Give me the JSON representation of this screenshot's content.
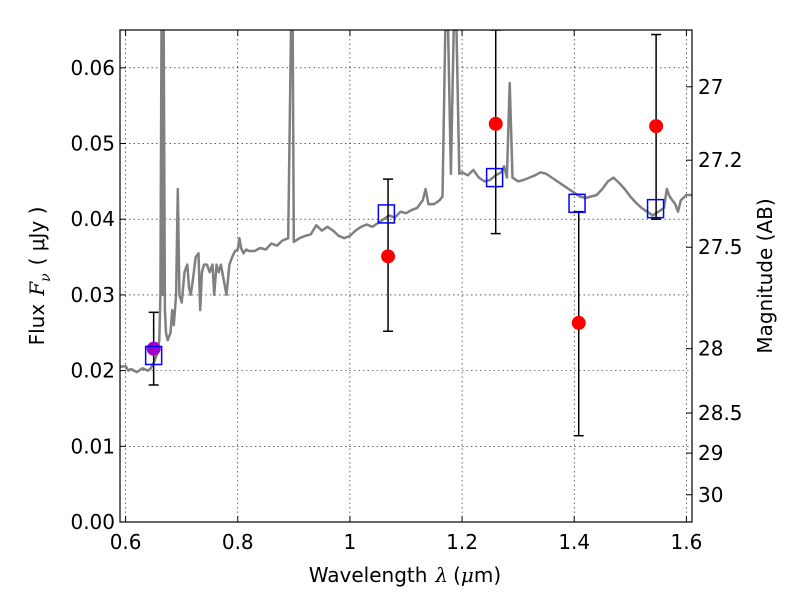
{
  "chart_data": {
    "type": "line",
    "xlabel": "Wavelength",
    "xlabel_symbol": "λ",
    "xlabel_unit_prefix": "(",
    "xlabel_unit": "μ",
    "xlabel_unit_suffix": "m)",
    "ylabel_left": "Flux",
    "ylabel_left_symbol": "F",
    "ylabel_left_subscript": "ν",
    "ylabel_left_unit": "( μJy )",
    "ylabel_right": "Magnitude (AB)",
    "xlim": [
      0.59,
      1.61
    ],
    "ylim": [
      0.0,
      0.065
    ],
    "grid": true,
    "x_ticks": [
      {
        "value": 0.6,
        "label": "0.6"
      },
      {
        "value": 0.8,
        "label": "0.8"
      },
      {
        "value": 1.0,
        "label": "1"
      },
      {
        "value": 1.2,
        "label": "1.2"
      },
      {
        "value": 1.4,
        "label": "1.4"
      },
      {
        "value": 1.6,
        "label": "1.6"
      }
    ],
    "y_ticks": [
      {
        "value": 0.0,
        "label": "0.00"
      },
      {
        "value": 0.01,
        "label": "0.01"
      },
      {
        "value": 0.02,
        "label": "0.02"
      },
      {
        "value": 0.03,
        "label": "0.03"
      },
      {
        "value": 0.04,
        "label": "0.04"
      },
      {
        "value": 0.05,
        "label": "0.05"
      },
      {
        "value": 0.06,
        "label": "0.06"
      }
    ],
    "right_ticks": [
      {
        "flux": 0.0575,
        "label": "27"
      },
      {
        "flux": 0.0478,
        "label": "27.2"
      },
      {
        "flux": 0.0363,
        "label": "27.5"
      },
      {
        "flux": 0.0229,
        "label": "28"
      },
      {
        "flux": 0.0144,
        "label": "28.5"
      },
      {
        "flux": 0.0091,
        "label": "29"
      },
      {
        "flux": 0.0036,
        "label": "30"
      }
    ],
    "series": [
      {
        "kind": "spectrum",
        "color": "#808080",
        "points": [
          [
            0.59,
            0.0205
          ],
          [
            0.6,
            0.0206
          ],
          [
            0.605,
            0.02
          ],
          [
            0.61,
            0.0202
          ],
          [
            0.62,
            0.0198
          ],
          [
            0.63,
            0.0203
          ],
          [
            0.64,
            0.02
          ],
          [
            0.645,
            0.0203
          ],
          [
            0.65,
            0.021
          ],
          [
            0.655,
            0.022
          ],
          [
            0.66,
            0.024
          ],
          [
            0.662,
            0.03
          ],
          [
            0.664,
            0.065
          ],
          [
            0.666,
            0.03
          ],
          [
            0.668,
            0.065
          ],
          [
            0.67,
            0.028
          ],
          [
            0.672,
            0.025
          ],
          [
            0.675,
            0.024
          ],
          [
            0.68,
            0.025
          ],
          [
            0.683,
            0.028
          ],
          [
            0.686,
            0.026
          ],
          [
            0.69,
            0.03
          ],
          [
            0.693,
            0.044
          ],
          [
            0.696,
            0.03
          ],
          [
            0.7,
            0.029
          ],
          [
            0.705,
            0.033
          ],
          [
            0.71,
            0.034
          ],
          [
            0.713,
            0.031
          ],
          [
            0.716,
            0.03
          ],
          [
            0.72,
            0.032
          ],
          [
            0.725,
            0.035
          ],
          [
            0.73,
            0.0355
          ],
          [
            0.733,
            0.028
          ],
          [
            0.736,
            0.033
          ],
          [
            0.74,
            0.034
          ],
          [
            0.745,
            0.034
          ],
          [
            0.75,
            0.033
          ],
          [
            0.755,
            0.034
          ],
          [
            0.758,
            0.03
          ],
          [
            0.762,
            0.034
          ],
          [
            0.766,
            0.033
          ],
          [
            0.77,
            0.034
          ],
          [
            0.775,
            0.032
          ],
          [
            0.78,
            0.03
          ],
          [
            0.785,
            0.034
          ],
          [
            0.79,
            0.035
          ],
          [
            0.795,
            0.0358
          ],
          [
            0.8,
            0.036
          ],
          [
            0.803,
            0.0375
          ],
          [
            0.806,
            0.0362
          ],
          [
            0.81,
            0.0355
          ],
          [
            0.815,
            0.036
          ],
          [
            0.82,
            0.0358
          ],
          [
            0.83,
            0.0358
          ],
          [
            0.84,
            0.0362
          ],
          [
            0.85,
            0.036
          ],
          [
            0.86,
            0.0368
          ],
          [
            0.87,
            0.0365
          ],
          [
            0.88,
            0.0372
          ],
          [
            0.89,
            0.0375
          ],
          [
            0.895,
            0.065
          ],
          [
            0.898,
            0.065
          ],
          [
            0.9,
            0.037
          ],
          [
            0.91,
            0.0375
          ],
          [
            0.92,
            0.0378
          ],
          [
            0.93,
            0.038
          ],
          [
            0.94,
            0.0392
          ],
          [
            0.95,
            0.0385
          ],
          [
            0.96,
            0.039
          ],
          [
            0.97,
            0.0385
          ],
          [
            0.98,
            0.0378
          ],
          [
            0.99,
            0.0375
          ],
          [
            1.0,
            0.0378
          ],
          [
            1.01,
            0.0385
          ],
          [
            1.02,
            0.039
          ],
          [
            1.03,
            0.0393
          ],
          [
            1.04,
            0.039
          ],
          [
            1.05,
            0.0395
          ],
          [
            1.06,
            0.04
          ],
          [
            1.07,
            0.0405
          ],
          [
            1.08,
            0.0402
          ],
          [
            1.09,
            0.041
          ],
          [
            1.1,
            0.0408
          ],
          [
            1.11,
            0.0412
          ],
          [
            1.12,
            0.0415
          ],
          [
            1.13,
            0.0425
          ],
          [
            1.135,
            0.044
          ],
          [
            1.14,
            0.042
          ],
          [
            1.15,
            0.042
          ],
          [
            1.16,
            0.0425
          ],
          [
            1.165,
            0.043
          ],
          [
            1.17,
            0.065
          ],
          [
            1.175,
            0.065
          ],
          [
            1.18,
            0.046
          ],
          [
            1.185,
            0.065
          ],
          [
            1.19,
            0.065
          ],
          [
            1.195,
            0.046
          ],
          [
            1.2,
            0.0462
          ],
          [
            1.21,
            0.0458
          ],
          [
            1.22,
            0.0465
          ],
          [
            1.23,
            0.0455
          ],
          [
            1.24,
            0.045
          ],
          [
            1.25,
            0.0452
          ],
          [
            1.26,
            0.0458
          ],
          [
            1.27,
            0.0462
          ],
          [
            1.275,
            0.047
          ],
          [
            1.28,
            0.0455
          ],
          [
            1.285,
            0.058
          ],
          [
            1.29,
            0.0455
          ],
          [
            1.3,
            0.045
          ],
          [
            1.31,
            0.0452
          ],
          [
            1.32,
            0.0455
          ],
          [
            1.33,
            0.0458
          ],
          [
            1.34,
            0.0462
          ],
          [
            1.35,
            0.046
          ],
          [
            1.36,
            0.0455
          ],
          [
            1.37,
            0.045
          ],
          [
            1.38,
            0.0445
          ],
          [
            1.39,
            0.044
          ],
          [
            1.4,
            0.0435
          ],
          [
            1.41,
            0.043
          ],
          [
            1.42,
            0.0428
          ],
          [
            1.43,
            0.043
          ],
          [
            1.44,
            0.0432
          ],
          [
            1.45,
            0.044
          ],
          [
            1.46,
            0.045
          ],
          [
            1.47,
            0.0455
          ],
          [
            1.48,
            0.0448
          ],
          [
            1.49,
            0.044
          ],
          [
            1.5,
            0.043
          ],
          [
            1.51,
            0.0422
          ],
          [
            1.52,
            0.0415
          ],
          [
            1.53,
            0.041
          ],
          [
            1.54,
            0.0405
          ],
          [
            1.55,
            0.041
          ],
          [
            1.56,
            0.0415
          ],
          [
            1.565,
            0.044
          ],
          [
            1.57,
            0.043
          ],
          [
            1.58,
            0.042
          ],
          [
            1.585,
            0.041
          ],
          [
            1.59,
            0.0425
          ],
          [
            1.6,
            0.0432
          ],
          [
            1.61,
            0.0432
          ]
        ]
      },
      {
        "kind": "squares",
        "color": "#0000ff",
        "points": [
          [
            0.65,
            0.022
          ],
          [
            1.065,
            0.0407
          ],
          [
            1.258,
            0.0455
          ],
          [
            1.405,
            0.0421
          ],
          [
            1.545,
            0.0414
          ]
        ]
      },
      {
        "kind": "points_with_errors",
        "color": "#ff0000",
        "points": [
          {
            "x": 1.068,
            "y": 0.0351,
            "lo": 0.0252,
            "hi": 0.0453
          },
          {
            "x": 1.26,
            "y": 0.0526,
            "lo": 0.0381,
            "hi": 0.065
          },
          {
            "x": 1.408,
            "y": 0.0263,
            "lo": 0.0114,
            "hi": 0.041
          },
          {
            "x": 1.546,
            "y": 0.0523,
            "lo": 0.04,
            "hi": 0.0644
          }
        ]
      },
      {
        "kind": "points_with_errors",
        "color": "#a000c8",
        "points": [
          {
            "x": 0.65,
            "y": 0.0229,
            "lo": 0.0181,
            "hi": 0.0277
          }
        ]
      }
    ]
  }
}
